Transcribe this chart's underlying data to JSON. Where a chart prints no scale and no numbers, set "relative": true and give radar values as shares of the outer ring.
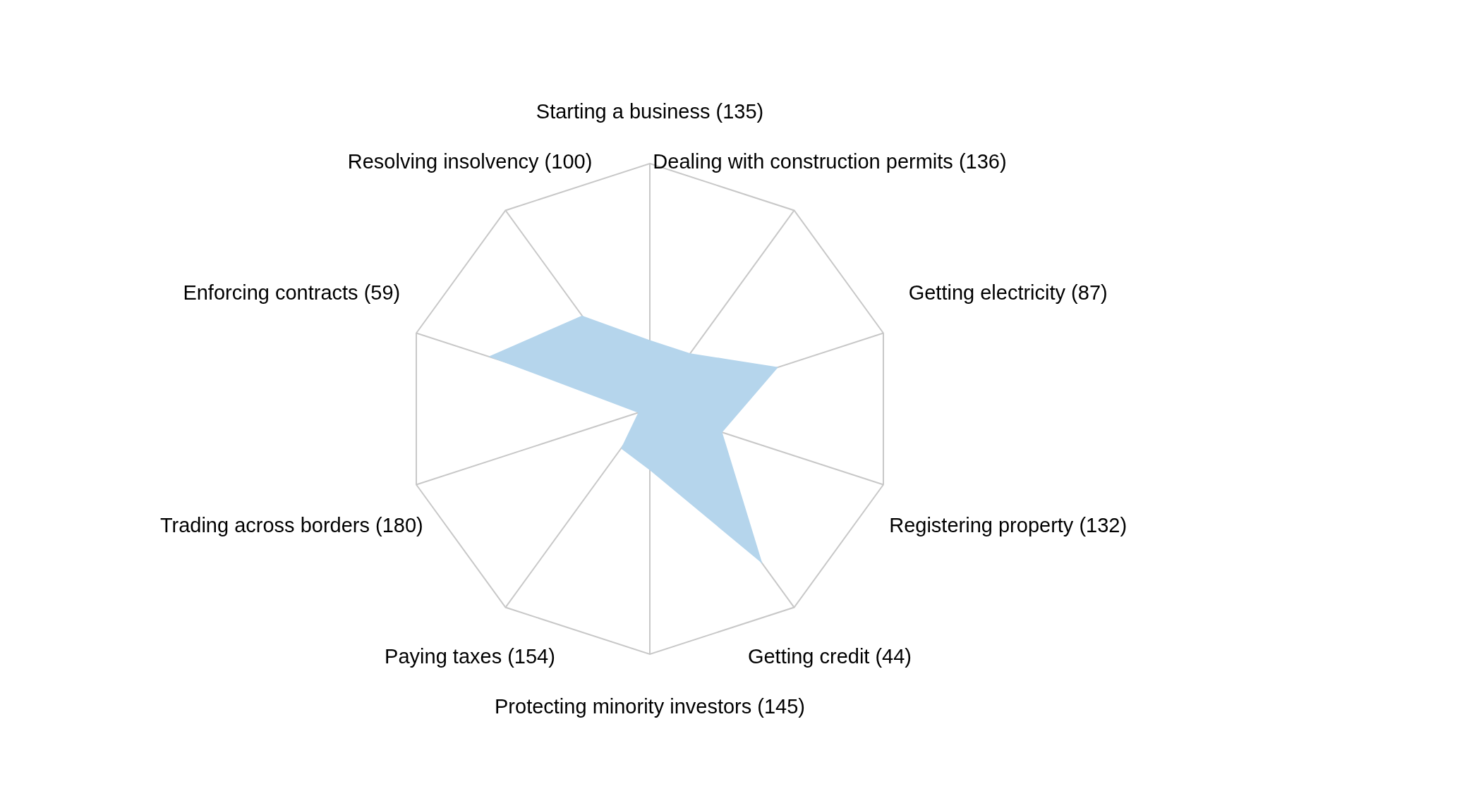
{
  "chart_data": {
    "type": "radar",
    "relative": true,
    "categories": [
      "Starting a business (135)",
      "Dealing with construction permits (136)",
      "Getting electricity (87)",
      "Registering property (132)",
      "Getting credit (44)",
      "Protecting minority investors (145)",
      "Paying taxes (154)",
      "Trading across borders (180)",
      "Enforcing contracts (59)",
      "Resolving insolvency (100)"
    ],
    "series": [
      {
        "color": "#b5d5ec",
        "values": [
          0.28,
          0.28,
          0.55,
          0.31,
          0.78,
          0.25,
          0.2,
          0.05,
          0.69,
          0.47
        ]
      }
    ]
  }
}
